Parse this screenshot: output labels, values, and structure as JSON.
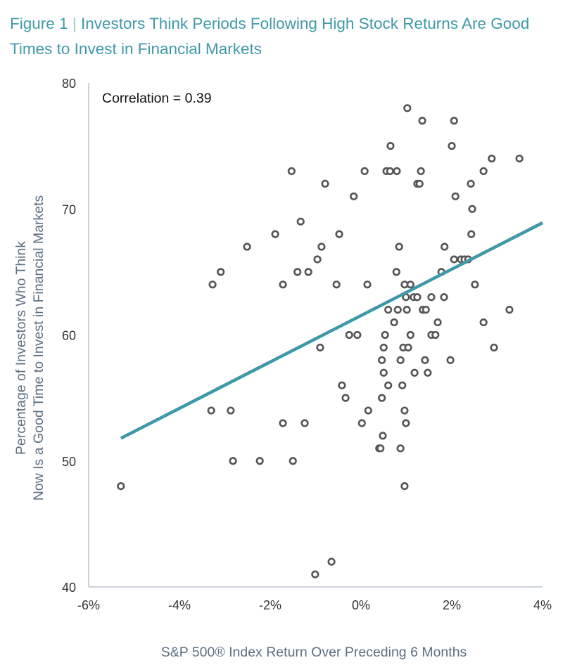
{
  "title": {
    "figure": "Figure 1",
    "separator": "|",
    "text": "Investors Think Periods Following High Stock Returns Are Good Times to Invest in Financial Markets"
  },
  "colors": {
    "title": "#3f9aa8",
    "trend": "#3e98a6",
    "points": "#555555",
    "axis_label": "#5d6f80",
    "axis": "#c9d3dc",
    "ticks": "#333333"
  },
  "chart_data": {
    "type": "scatter",
    "title": "Investors Think Periods Following High Stock Returns Are Good Times to Invest in Financial Markets",
    "xlabel": "S&P 500® Index Return Over Preceding 6 Months",
    "ylabel_lines": [
      "Percentage of Investors Who Think",
      "Now Is a Good Time to Invest in Financial Markets"
    ],
    "annotation": "Correlation = 0.39",
    "xlim": [
      -6,
      4
    ],
    "ylim": [
      40,
      80
    ],
    "xticks": [
      -6,
      -4,
      -2,
      0,
      2,
      4
    ],
    "xtick_labels": [
      "-6%",
      "-4%",
      "-2%",
      "0%",
      "2%",
      "4%"
    ],
    "yticks": [
      40,
      50,
      60,
      70,
      80
    ],
    "ytick_labels": [
      "40",
      "50",
      "60",
      "70",
      "80"
    ],
    "grid": false,
    "trendline": {
      "x": [
        -5.29,
        4.0
      ],
      "y": [
        51.8,
        68.9
      ]
    },
    "points": [
      [
        -5.29,
        48
      ],
      [
        -3.3,
        54
      ],
      [
        -3.27,
        64
      ],
      [
        -3.09,
        65
      ],
      [
        -2.87,
        54
      ],
      [
        -2.82,
        50
      ],
      [
        -2.51,
        67
      ],
      [
        -2.23,
        50
      ],
      [
        -1.89,
        68
      ],
      [
        -1.72,
        64
      ],
      [
        -1.72,
        53
      ],
      [
        -1.53,
        73
      ],
      [
        -1.5,
        50
      ],
      [
        -1.4,
        65
      ],
      [
        -1.33,
        69
      ],
      [
        -1.24,
        53
      ],
      [
        -1.16,
        65
      ],
      [
        -1.01,
        41
      ],
      [
        -0.96,
        66
      ],
      [
        -0.9,
        59
      ],
      [
        -0.87,
        67
      ],
      [
        -0.79,
        72
      ],
      [
        -0.65,
        42
      ],
      [
        -0.54,
        64
      ],
      [
        -0.48,
        68
      ],
      [
        -0.42,
        56
      ],
      [
        -0.34,
        55
      ],
      [
        -0.26,
        60
      ],
      [
        -0.16,
        71
      ],
      [
        -0.08,
        60
      ],
      [
        0.02,
        53
      ],
      [
        0.08,
        73
      ],
      [
        0.14,
        64
      ],
      [
        0.16,
        54
      ],
      [
        1.02,
        78
      ],
      [
        1.35,
        77
      ],
      [
        2.05,
        77
      ],
      [
        0.65,
        75
      ],
      [
        2.0,
        75
      ],
      [
        2.88,
        74
      ],
      [
        3.49,
        74
      ],
      [
        0.56,
        73
      ],
      [
        0.64,
        73
      ],
      [
        0.79,
        73
      ],
      [
        1.32,
        73
      ],
      [
        2.7,
        73
      ],
      [
        1.24,
        72
      ],
      [
        1.29,
        72
      ],
      [
        2.42,
        72
      ],
      [
        2.08,
        71
      ],
      [
        2.45,
        70
      ],
      [
        2.43,
        68
      ],
      [
        0.84,
        67
      ],
      [
        1.84,
        67
      ],
      [
        2.05,
        66
      ],
      [
        2.2,
        66
      ],
      [
        2.28,
        66
      ],
      [
        2.36,
        66
      ],
      [
        0.78,
        65
      ],
      [
        1.77,
        65
      ],
      [
        0.96,
        64
      ],
      [
        1.09,
        64
      ],
      [
        2.51,
        64
      ],
      [
        0.99,
        63
      ],
      [
        1.16,
        63
      ],
      [
        1.24,
        63
      ],
      [
        1.55,
        63
      ],
      [
        1.83,
        63
      ],
      [
        0.6,
        62
      ],
      [
        0.81,
        62
      ],
      [
        1.01,
        62
      ],
      [
        1.36,
        62
      ],
      [
        1.43,
        62
      ],
      [
        3.27,
        62
      ],
      [
        0.73,
        61
      ],
      [
        1.69,
        61
      ],
      [
        2.7,
        61
      ],
      [
        0.53,
        60
      ],
      [
        1.09,
        60
      ],
      [
        1.55,
        60
      ],
      [
        1.64,
        60
      ],
      [
        0.5,
        59
      ],
      [
        0.93,
        59
      ],
      [
        1.04,
        59
      ],
      [
        2.93,
        59
      ],
      [
        0.46,
        58
      ],
      [
        0.87,
        58
      ],
      [
        1.41,
        58
      ],
      [
        1.97,
        58
      ],
      [
        0.5,
        57
      ],
      [
        1.18,
        57
      ],
      [
        1.47,
        57
      ],
      [
        0.6,
        56
      ],
      [
        0.91,
        56
      ],
      [
        0.46,
        55
      ],
      [
        0.96,
        54
      ],
      [
        0.99,
        53
      ],
      [
        0.48,
        52
      ],
      [
        0.4,
        51
      ],
      [
        0.43,
        51
      ],
      [
        0.87,
        51
      ],
      [
        0.96,
        48
      ]
    ]
  }
}
